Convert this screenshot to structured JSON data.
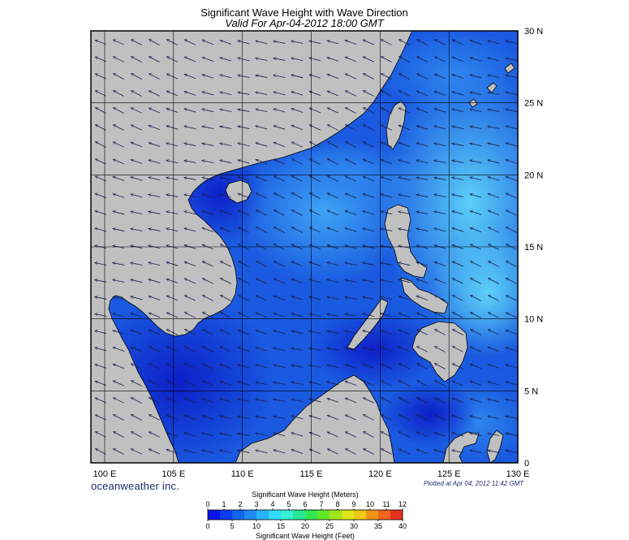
{
  "title": "Significant Wave Height with Wave Direction",
  "subtitle": "Valid For Apr-04-2012 18:00 GMT",
  "branding": "oceanweather inc.",
  "plotted": "Plotted at Apr 04, 2012 11:42 GMT",
  "map": {
    "lon_range": [
      99,
      130
    ],
    "lat_range": [
      0,
      30
    ],
    "lon_ticks": [
      {
        "value": 100,
        "label": "100 E"
      },
      {
        "value": 105,
        "label": "105 E"
      },
      {
        "value": 110,
        "label": "110 E"
      },
      {
        "value": 115,
        "label": "115 E"
      },
      {
        "value": 120,
        "label": "120 E"
      },
      {
        "value": 125,
        "label": "125 E"
      },
      {
        "value": 130,
        "label": "130 E"
      }
    ],
    "lat_ticks": [
      {
        "value": 30,
        "label": "30 N"
      },
      {
        "value": 25,
        "label": "25 N"
      },
      {
        "value": 20,
        "label": "20 N"
      },
      {
        "value": 15,
        "label": "15 N"
      },
      {
        "value": 10,
        "label": "10 N"
      },
      {
        "value": 5,
        "label": "5 N"
      },
      {
        "value": 0,
        "label": "0"
      }
    ],
    "land_color": "#c0c0c0",
    "ocean_color": "#1e64e0",
    "wave_direction": "northeasterly"
  },
  "legend": {
    "top_title": "Significant Wave Height (Meters)",
    "bottom_title": "Significant Wave Height (Feet)",
    "meters_ticks": [
      "0",
      "1",
      "2",
      "3",
      "4",
      "5",
      "6",
      "7",
      "8",
      "9",
      "10",
      "11",
      "12"
    ],
    "feet_ticks": [
      "0",
      "5",
      "10",
      "15",
      "20",
      "25",
      "30",
      "35",
      "40"
    ],
    "colors": [
      "#0a14e6",
      "#0a3cf0",
      "#1464f0",
      "#1e8cf5",
      "#28b4fa",
      "#32dcfa",
      "#32f0d2",
      "#28e696",
      "#32e650",
      "#64e628",
      "#a0e61e",
      "#dce614",
      "#f0c814",
      "#f09614",
      "#f0641e",
      "#e6321e"
    ]
  }
}
